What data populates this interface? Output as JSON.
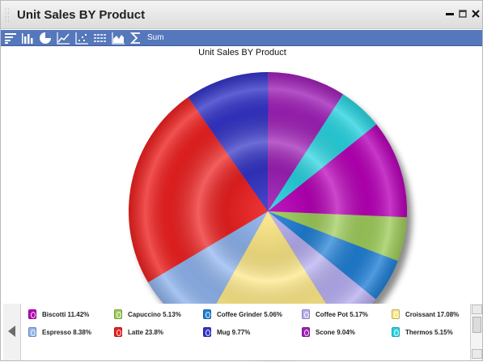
{
  "window": {
    "title": "Unit Sales BY Product",
    "controls": [
      "minimize-icon",
      "restore-icon",
      "close-icon"
    ]
  },
  "toolbar": {
    "icons": [
      "bar-horizontal-icon",
      "bar-vertical-icon",
      "pie-icon",
      "line-icon",
      "scatter-icon",
      "multi-line-icon",
      "area-icon",
      "sigma-icon"
    ],
    "sum_label": "Sum"
  },
  "chart_data": {
    "type": "pie",
    "title": "Unit Sales BY Product",
    "slices": [
      {
        "label": "Biscotti",
        "value": 11.42,
        "color": "#b800b8"
      },
      {
        "label": "Capuccino",
        "value": 5.13,
        "color": "#9ecc5a"
      },
      {
        "label": "Coffee Grinder",
        "value": 5.06,
        "color": "#1f7fd6"
      },
      {
        "label": "Coffee Pot",
        "value": 5.17,
        "color": "#b7aef0"
      },
      {
        "label": "Croissant",
        "value": 17.08,
        "color": "#fde886"
      },
      {
        "label": "Espresso",
        "value": 8.38,
        "color": "#8fb4ee"
      },
      {
        "label": "Latte",
        "value": 23.8,
        "color": "#ee2020"
      },
      {
        "label": "Mug",
        "value": 9.77,
        "color": "#3434c8"
      },
      {
        "label": "Scone",
        "value": 9.04,
        "color": "#a020b8"
      },
      {
        "label": "Thermos",
        "value": 5.15,
        "color": "#28d4e0"
      }
    ],
    "legend": [
      {
        "text": "Biscotti 11.42%",
        "color": "#b800b8"
      },
      {
        "text": "Capuccino 5.13%",
        "color": "#9ecc5a"
      },
      {
        "text": "Coffee Grinder 5.06%",
        "color": "#1f7fd6"
      },
      {
        "text": "Coffee Pot 5.17%",
        "color": "#b7aef0"
      },
      {
        "text": "Croissant 17.08%",
        "color": "#fde886"
      },
      {
        "text": "Espresso 8.38%",
        "color": "#8fb4ee"
      },
      {
        "text": "Latte 23.8%",
        "color": "#ee2020"
      },
      {
        "text": "Mug 9.77%",
        "color": "#3434c8"
      },
      {
        "text": "Scone 9.04%",
        "color": "#a020b8"
      },
      {
        "text": "Thermos 5.15%",
        "color": "#28d4e0"
      }
    ],
    "legend_placement": "bottom"
  }
}
